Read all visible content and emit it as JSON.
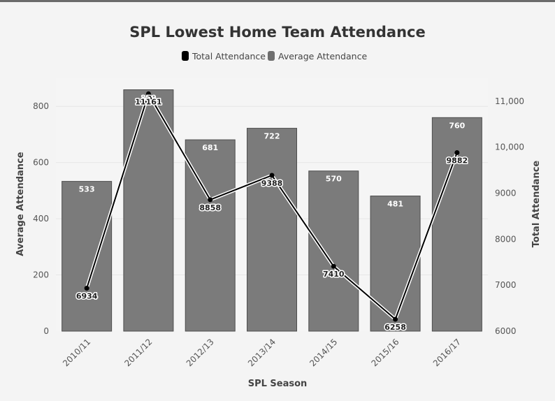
{
  "chart_data": {
    "type": "bar",
    "title": "SPL Lowest Home Team Attendance",
    "xlabel": "SPL Season",
    "ylabel": "Average Attendance",
    "y2label": "Total Attendance",
    "categories": [
      "2010/11",
      "2011/12",
      "2012/13",
      "2013/14",
      "2014/15",
      "2015/16",
      "2016/17"
    ],
    "series": [
      {
        "name": "Average Attendance",
        "type": "bar",
        "axis": "left",
        "values": [
          533,
          859,
          681,
          722,
          570,
          481,
          760
        ],
        "color": "#7b7b7b"
      },
      {
        "name": "Total Attendance",
        "type": "line",
        "axis": "right",
        "values": [
          6934,
          11161,
          8858,
          9388,
          7410,
          6258,
          9882
        ],
        "color": "#000000"
      }
    ],
    "ylim": [
      0,
      900
    ],
    "yticks": [
      0,
      200,
      400,
      600,
      800
    ],
    "y2lim": [
      6000,
      11500
    ],
    "y2ticks": [
      6000,
      7000,
      8000,
      9000,
      10000,
      11000
    ],
    "y2tick_labels": [
      "6000",
      "7000",
      "8000",
      "9000",
      "10,000",
      "11,000"
    ],
    "legend": "top-center",
    "grid": true
  }
}
